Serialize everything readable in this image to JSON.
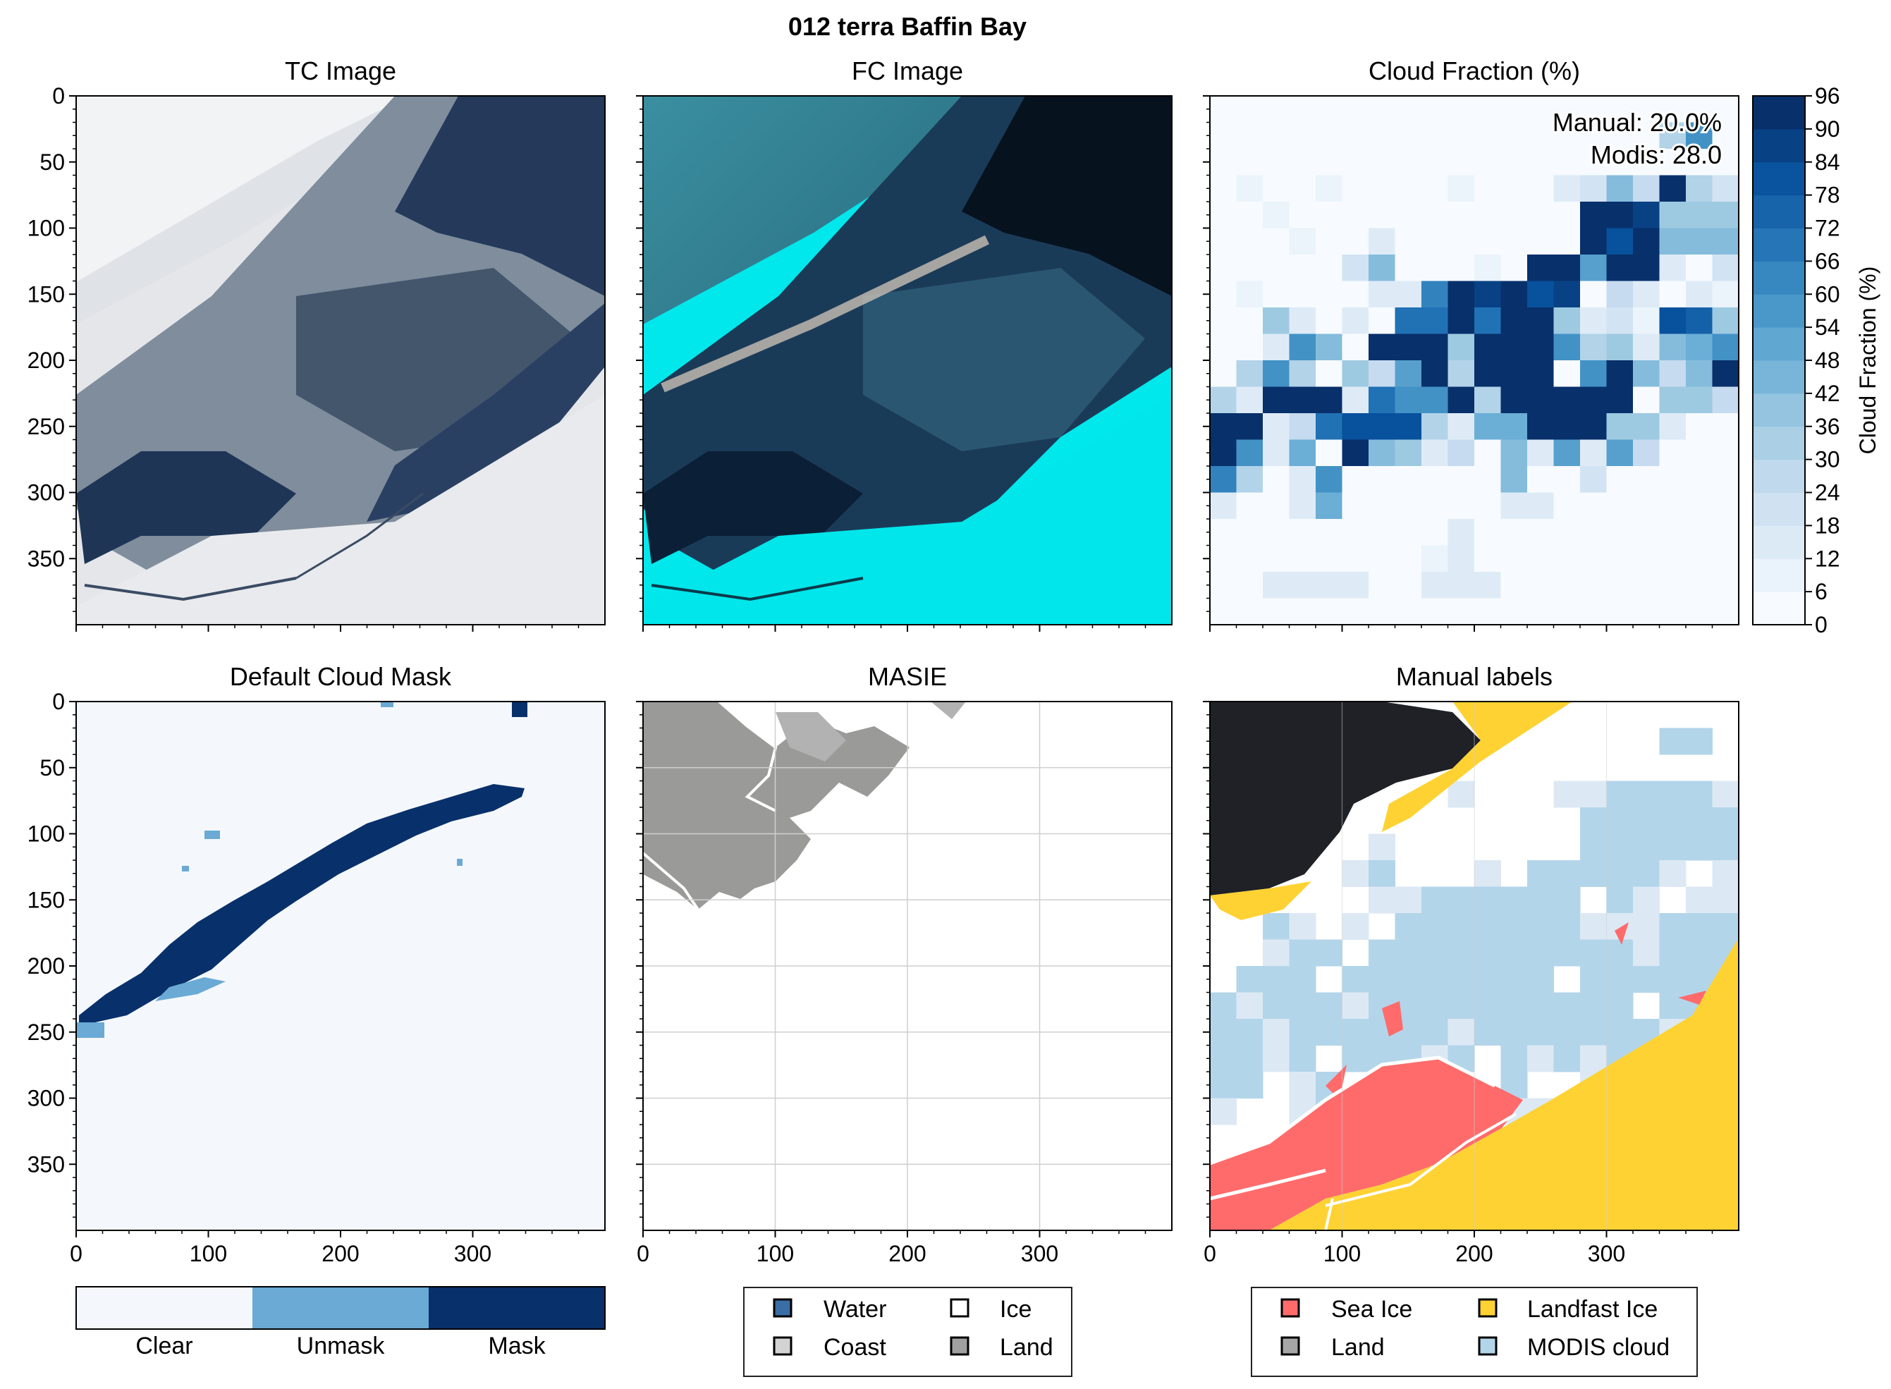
{
  "figure": {
    "title": "012 terra Baffin Bay"
  },
  "panels": {
    "tc": {
      "title": "TC Image"
    },
    "fc": {
      "title": "FC Image"
    },
    "cf": {
      "title": "Cloud Fraction (%)",
      "annotations": [
        "Manual: 20.0%",
        "Modis: 28.0"
      ]
    },
    "dcm": {
      "title": "Default Cloud Mask"
    },
    "masie": {
      "title": "MASIE"
    },
    "manual": {
      "title": "Manual labels"
    }
  },
  "axes": {
    "x_ticks": [
      "0",
      "100",
      "200",
      "300"
    ],
    "y_ticks": [
      "0",
      "50",
      "100",
      "150",
      "200",
      "250",
      "300",
      "350"
    ],
    "x_range": [
      0,
      400
    ],
    "y_range": [
      0,
      400
    ]
  },
  "colorbar": {
    "label": "Cloud Fraction (%)",
    "ticks": [
      "0",
      "6",
      "12",
      "18",
      "24",
      "30",
      "36",
      "42",
      "48",
      "54",
      "60",
      "66",
      "72",
      "78",
      "84",
      "90",
      "96"
    ],
    "range": [
      0,
      96
    ]
  },
  "mask_legend": {
    "items": [
      {
        "label": "Clear",
        "color": "#f4f8fc"
      },
      {
        "label": "Unmask",
        "color": "#6aaad5"
      },
      {
        "label": "Mask",
        "color": "#08306b"
      }
    ]
  },
  "masie_legend": {
    "items": [
      {
        "label": "Water",
        "color": "#3a6ea5"
      },
      {
        "label": "Ice",
        "color": "#ffffff"
      },
      {
        "label": "Coast",
        "color": "#d3d3d3"
      },
      {
        "label": "Land",
        "color": "#a0a0a0"
      }
    ]
  },
  "manual_legend": {
    "items": [
      {
        "label": "Sea Ice",
        "color": "#ff6b6b"
      },
      {
        "label": "Landfast Ice",
        "color": "#ffd233"
      },
      {
        "label": "Land",
        "color": "#a6a6a6"
      },
      {
        "label": "MODIS cloud",
        "color": "#b3d5ea"
      }
    ]
  },
  "chart_data": [
    {
      "type": "heatmap",
      "title": "Cloud Fraction (%)",
      "xlim": [
        0,
        400
      ],
      "ylim": [
        400,
        0
      ],
      "cell_size": 20,
      "colorbar_range": [
        0,
        96
      ],
      "values": [
        [
          0,
          0,
          0,
          0,
          0,
          0,
          0,
          0,
          0,
          0,
          0,
          0,
          0,
          0,
          0,
          0,
          0,
          0,
          0,
          0
        ],
        [
          0,
          0,
          0,
          0,
          0,
          0,
          0,
          0,
          0,
          0,
          0,
          0,
          0,
          0,
          0,
          0,
          0,
          35,
          62,
          0
        ],
        [
          0,
          0,
          0,
          0,
          0,
          0,
          0,
          0,
          0,
          0,
          0,
          0,
          0,
          0,
          0,
          0,
          0,
          0,
          0,
          0
        ],
        [
          0,
          6,
          0,
          0,
          9,
          0,
          0,
          0,
          0,
          6,
          0,
          0,
          0,
          12,
          18,
          45,
          25,
          96,
          30,
          22
        ],
        [
          0,
          0,
          6,
          0,
          0,
          0,
          0,
          0,
          0,
          0,
          0,
          0,
          0,
          0,
          96,
          96,
          92,
          36,
          36,
          36
        ],
        [
          0,
          0,
          0,
          6,
          0,
          0,
          12,
          0,
          0,
          0,
          0,
          0,
          0,
          0,
          96,
          84,
          96,
          42,
          42,
          42
        ],
        [
          0,
          0,
          0,
          0,
          0,
          20,
          45,
          0,
          0,
          0,
          6,
          0,
          96,
          96,
          58,
          96,
          96,
          12,
          0,
          20
        ],
        [
          0,
          6,
          0,
          0,
          0,
          0,
          12,
          12,
          70,
          96,
          90,
          96,
          84,
          92,
          0,
          24,
          12,
          0,
          12,
          6
        ],
        [
          0,
          0,
          36,
          12,
          0,
          12,
          0,
          72,
          72,
          96,
          74,
          96,
          96,
          36,
          12,
          18,
          6,
          84,
          80,
          36
        ],
        [
          0,
          0,
          12,
          60,
          45,
          0,
          96,
          96,
          96,
          36,
          96,
          96,
          96,
          60,
          30,
          40,
          12,
          45,
          48,
          60
        ],
        [
          0,
          30,
          60,
          30,
          0,
          36,
          24,
          54,
          96,
          30,
          96,
          96,
          96,
          0,
          60,
          96,
          45,
          24,
          42,
          96
        ],
        [
          30,
          12,
          96,
          96,
          96,
          12,
          72,
          60,
          60,
          96,
          30,
          96,
          96,
          96,
          96,
          96,
          0,
          36,
          36,
          24
        ],
        [
          96,
          96,
          12,
          24,
          72,
          84,
          84,
          84,
          30,
          12,
          48,
          48,
          96,
          96,
          96,
          36,
          36,
          12,
          0,
          0
        ],
        [
          96,
          60,
          12,
          48,
          0,
          96,
          42,
          36,
          12,
          24,
          0,
          42,
          12,
          54,
          12,
          54,
          24,
          0,
          0,
          0
        ],
        [
          66,
          30,
          0,
          12,
          60,
          0,
          0,
          0,
          0,
          0,
          0,
          42,
          0,
          0,
          18,
          0,
          0,
          0,
          0,
          0
        ],
        [
          12,
          0,
          0,
          12,
          48,
          0,
          0,
          0,
          0,
          0,
          0,
          12,
          12,
          0,
          0,
          0,
          0,
          0,
          0,
          0
        ],
        [
          0,
          0,
          0,
          0,
          0,
          0,
          0,
          0,
          0,
          12,
          0,
          0,
          0,
          0,
          0,
          0,
          0,
          0,
          0,
          0
        ],
        [
          0,
          0,
          0,
          0,
          0,
          0,
          0,
          0,
          6,
          12,
          0,
          0,
          0,
          0,
          0,
          0,
          0,
          0,
          0,
          0
        ],
        [
          0,
          0,
          12,
          12,
          12,
          12,
          0,
          0,
          12,
          12,
          12,
          0,
          0,
          0,
          0,
          0,
          0,
          0,
          0,
          0
        ],
        [
          0,
          0,
          0,
          0,
          0,
          0,
          0,
          0,
          0,
          0,
          0,
          0,
          0,
          0,
          0,
          0,
          0,
          0,
          0,
          0
        ]
      ]
    }
  ]
}
